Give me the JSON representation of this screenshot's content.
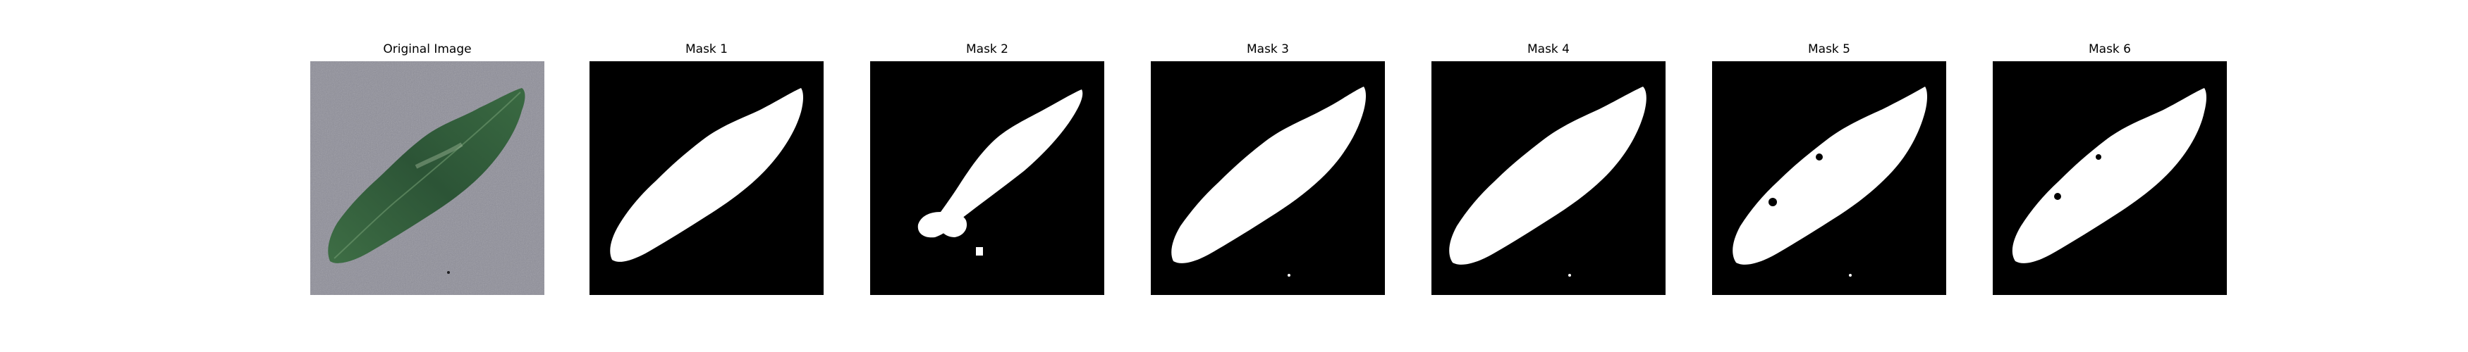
{
  "figure": {
    "panels": [
      {
        "title": "Original Image",
        "kind": "photo"
      },
      {
        "title": "Mask 1",
        "kind": "mask",
        "variant": 1
      },
      {
        "title": "Mask 2",
        "kind": "mask",
        "variant": 2
      },
      {
        "title": "Mask 3",
        "kind": "mask",
        "variant": 3
      },
      {
        "title": "Mask 4",
        "kind": "mask",
        "variant": 4
      },
      {
        "title": "Mask 5",
        "kind": "mask",
        "variant": 5
      },
      {
        "title": "Mask 6",
        "kind": "mask",
        "variant": 6
      }
    ]
  },
  "colors": {
    "background_photo": "#8e8e99",
    "leaf_dark": "#2f5a3a",
    "leaf_light": "#5f8a63",
    "mask_background": "#000000",
    "mask_foreground": "#ffffff"
  }
}
